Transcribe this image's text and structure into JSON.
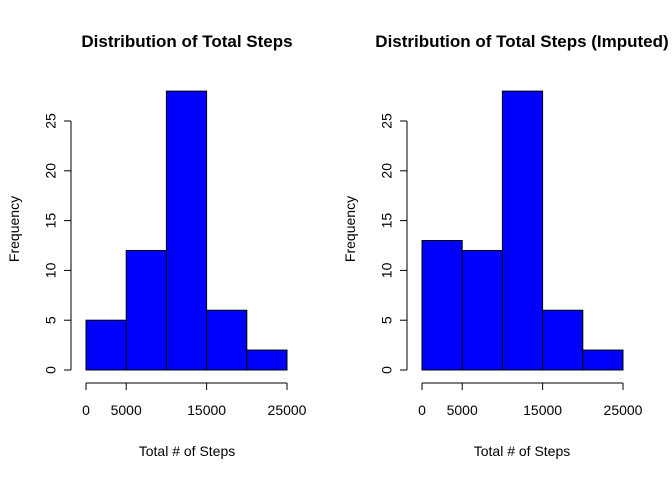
{
  "chart_data": [
    {
      "type": "bar",
      "title": "Distribution of Total Steps",
      "xlabel": "Total # of Steps",
      "ylabel": "Frequency",
      "bin_edges": [
        0,
        5000,
        10000,
        15000,
        20000,
        25000
      ],
      "values": [
        5,
        12,
        28,
        6,
        2
      ],
      "x_ticks": [
        0,
        5000,
        15000,
        25000
      ],
      "y_ticks": [
        0,
        5,
        10,
        15,
        20,
        25
      ],
      "xlim": [
        0,
        25000
      ],
      "ylim": [
        0,
        28
      ],
      "bar_color": "#0000FF",
      "grid": false
    },
    {
      "type": "bar",
      "title": "Distribution of Total Steps (Imputed)",
      "xlabel": "Total # of Steps",
      "ylabel": "Frequency",
      "bin_edges": [
        0,
        5000,
        10000,
        15000,
        20000,
        25000
      ],
      "values": [
        13,
        12,
        28,
        6,
        2
      ],
      "x_ticks": [
        0,
        5000,
        15000,
        25000
      ],
      "y_ticks": [
        0,
        5,
        10,
        15,
        20,
        25
      ],
      "xlim": [
        0,
        25000
      ],
      "ylim": [
        0,
        28
      ],
      "bar_color": "#0000FF",
      "grid": false
    }
  ]
}
